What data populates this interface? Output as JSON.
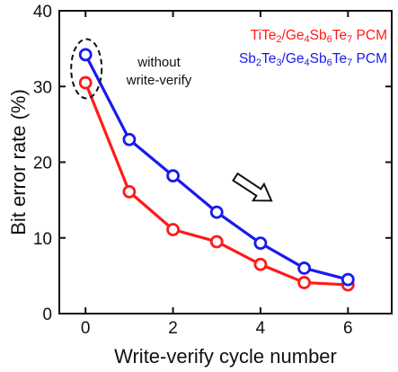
{
  "chart_data": {
    "type": "line",
    "xlabel": "Write-verify cycle number",
    "ylabel": "Bit error rate (%)",
    "xlim": [
      -0.6,
      7.0
    ],
    "ylim": [
      0,
      40
    ],
    "xticks": [
      0,
      2,
      4,
      6
    ],
    "yticks": [
      0,
      10,
      20,
      30,
      40
    ],
    "grid": false,
    "legend_position": "top-right",
    "x": [
      0,
      1,
      2,
      3,
      4,
      5,
      6
    ],
    "series": [
      {
        "name": "TiTe2/Ge4Sb6Te7 PCM",
        "name_parts": [
          [
            "TiTe",
            false
          ],
          [
            "2",
            true
          ],
          [
            "/Ge",
            false
          ],
          [
            "4",
            true
          ],
          [
            "Sb",
            false
          ],
          [
            "6",
            true
          ],
          [
            "Te",
            false
          ],
          [
            "7",
            true
          ],
          [
            " PCM",
            false
          ]
        ],
        "color": "#ff1a1a",
        "values": [
          30.5,
          16.1,
          11.1,
          9.5,
          6.5,
          4.1,
          3.8
        ]
      },
      {
        "name": "Sb2Te3/Ge4Sb6Te7 PCM",
        "name_parts": [
          [
            "Sb",
            false
          ],
          [
            "2",
            true
          ],
          [
            "Te",
            false
          ],
          [
            "3",
            true
          ],
          [
            "/Ge",
            false
          ],
          [
            "4",
            true
          ],
          [
            "Sb",
            false
          ],
          [
            "6",
            true
          ],
          [
            "Te",
            false
          ],
          [
            "7",
            true
          ],
          [
            " PCM",
            false
          ]
        ],
        "color": "#1a1aee",
        "values": [
          34.2,
          23.0,
          18.2,
          13.4,
          9.3,
          6.0,
          4.5
        ]
      }
    ],
    "annotations": {
      "without_line1": "without",
      "without_line2": "write-verify",
      "highlight": "dashed ellipse around cycle 0 points",
      "arrow": "hollow arrow pointing down-right"
    }
  }
}
